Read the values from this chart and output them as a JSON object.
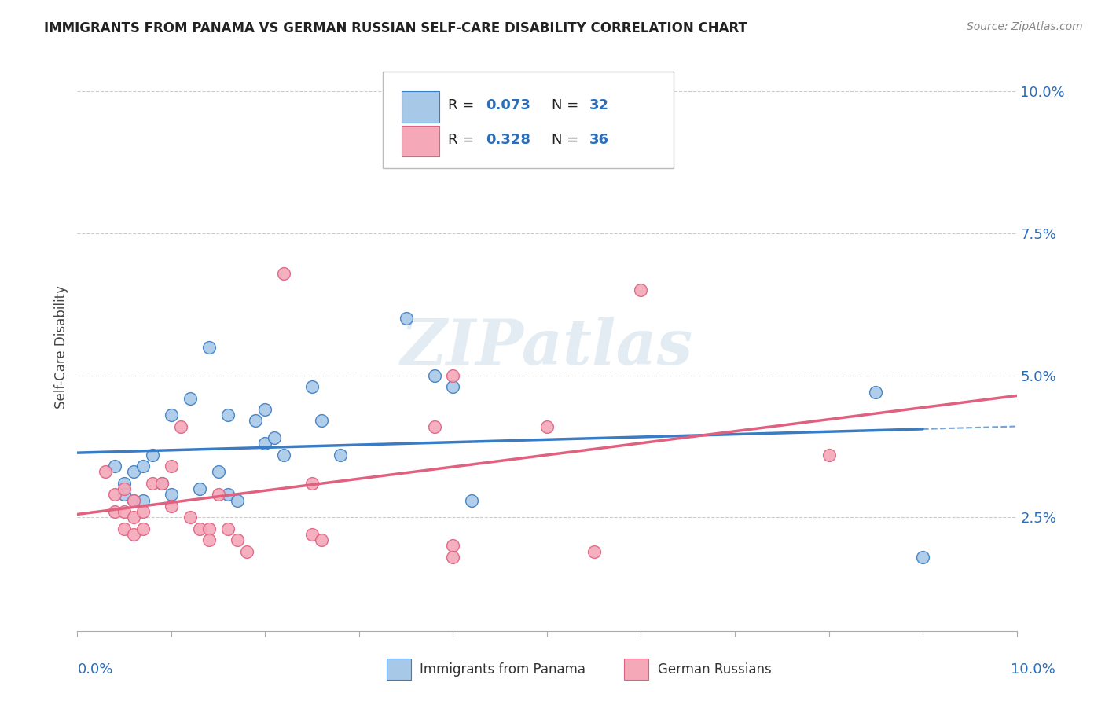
{
  "title": "IMMIGRANTS FROM PANAMA VS GERMAN RUSSIAN SELF-CARE DISABILITY CORRELATION CHART",
  "source": "Source: ZipAtlas.com",
  "ylabel": "Self-Care Disability",
  "R_panama": 0.073,
  "N_panama": 32,
  "R_german": 0.328,
  "N_german": 36,
  "panama_color": "#a8c8e8",
  "german_color": "#f4a8b8",
  "panama_line_color": "#3a7cc4",
  "german_line_color": "#e06080",
  "legend_r_n_color": "#2a6ebb",
  "panama_scatter": [
    [
      0.004,
      0.034
    ],
    [
      0.005,
      0.031
    ],
    [
      0.005,
      0.029
    ],
    [
      0.006,
      0.033
    ],
    [
      0.006,
      0.028
    ],
    [
      0.007,
      0.034
    ],
    [
      0.007,
      0.028
    ],
    [
      0.008,
      0.036
    ],
    [
      0.009,
      0.031
    ],
    [
      0.01,
      0.043
    ],
    [
      0.01,
      0.029
    ],
    [
      0.012,
      0.046
    ],
    [
      0.013,
      0.03
    ],
    [
      0.014,
      0.055
    ],
    [
      0.015,
      0.033
    ],
    [
      0.016,
      0.043
    ],
    [
      0.016,
      0.029
    ],
    [
      0.017,
      0.028
    ],
    [
      0.019,
      0.042
    ],
    [
      0.02,
      0.044
    ],
    [
      0.02,
      0.038
    ],
    [
      0.021,
      0.039
    ],
    [
      0.022,
      0.036
    ],
    [
      0.025,
      0.048
    ],
    [
      0.026,
      0.042
    ],
    [
      0.028,
      0.036
    ],
    [
      0.035,
      0.06
    ],
    [
      0.038,
      0.05
    ],
    [
      0.04,
      0.048
    ],
    [
      0.042,
      0.028
    ],
    [
      0.085,
      0.047
    ],
    [
      0.09,
      0.018
    ]
  ],
  "german_scatter": [
    [
      0.003,
      0.033
    ],
    [
      0.004,
      0.029
    ],
    [
      0.004,
      0.026
    ],
    [
      0.005,
      0.03
    ],
    [
      0.005,
      0.026
    ],
    [
      0.005,
      0.023
    ],
    [
      0.006,
      0.028
    ],
    [
      0.006,
      0.025
    ],
    [
      0.006,
      0.022
    ],
    [
      0.007,
      0.026
    ],
    [
      0.007,
      0.023
    ],
    [
      0.008,
      0.031
    ],
    [
      0.009,
      0.031
    ],
    [
      0.01,
      0.034
    ],
    [
      0.01,
      0.027
    ],
    [
      0.011,
      0.041
    ],
    [
      0.012,
      0.025
    ],
    [
      0.013,
      0.023
    ],
    [
      0.014,
      0.023
    ],
    [
      0.014,
      0.021
    ],
    [
      0.015,
      0.029
    ],
    [
      0.016,
      0.023
    ],
    [
      0.017,
      0.021
    ],
    [
      0.018,
      0.019
    ],
    [
      0.022,
      0.068
    ],
    [
      0.025,
      0.031
    ],
    [
      0.025,
      0.022
    ],
    [
      0.026,
      0.021
    ],
    [
      0.038,
      0.041
    ],
    [
      0.04,
      0.05
    ],
    [
      0.04,
      0.02
    ],
    [
      0.04,
      0.018
    ],
    [
      0.05,
      0.041
    ],
    [
      0.055,
      0.019
    ],
    [
      0.06,
      0.065
    ],
    [
      0.08,
      0.036
    ]
  ],
  "background_color": "#ffffff",
  "grid_color": "#cccccc",
  "watermark_text": "ZIPatlas",
  "watermark_color": "#ccdde8",
  "xlim": [
    0.0,
    0.1
  ],
  "ylim": [
    0.005,
    0.105
  ],
  "ytick_vals": [
    0.025,
    0.05,
    0.075,
    0.1
  ],
  "ytick_labels": [
    "2.5%",
    "5.0%",
    "7.5%",
    "10.0%"
  ]
}
